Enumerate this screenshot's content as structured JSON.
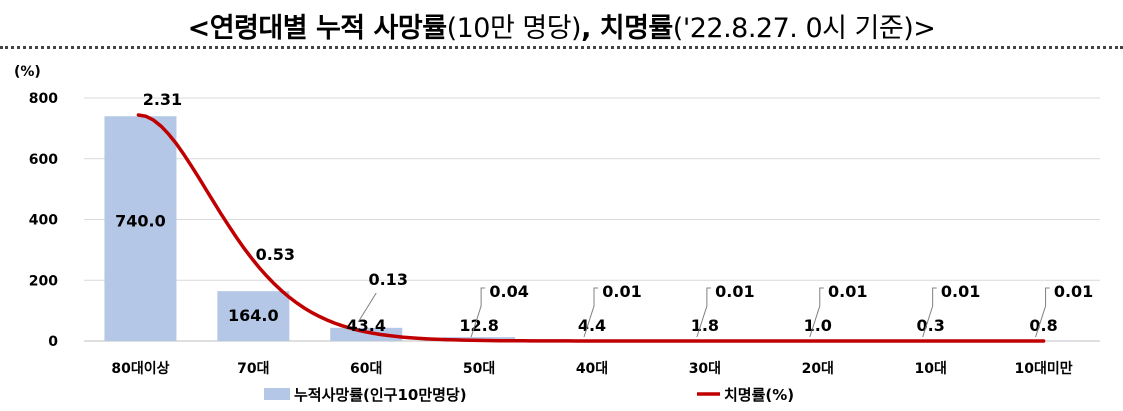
{
  "title": {
    "part1": "<연령대별 누적 사망률",
    "part2": "(10만 명당)",
    "part3": ", 치명률",
    "part4": "('22.8.27. 0시 기준)>"
  },
  "chart_data": {
    "type": "bar",
    "unit_label": "(%)",
    "categories": [
      "80대이상",
      "70대",
      "60대",
      "50대",
      "40대",
      "30대",
      "20대",
      "10대",
      "10대미만"
    ],
    "ylim": [
      0,
      800
    ],
    "yticks": [
      0,
      200,
      400,
      600,
      800
    ],
    "grid": true,
    "legend_position": "bottom",
    "series": [
      {
        "name": "누적사망률(인구10만명당)",
        "type": "bar",
        "color": "#b4c7e7",
        "values": [
          740.0,
          164.0,
          43.4,
          12.8,
          4.4,
          1.8,
          1.0,
          0.3,
          0.8
        ],
        "labels": [
          "740.0",
          "164.0",
          "43.4",
          "12.8",
          "4.4",
          "1.8",
          "1.0",
          "0.3",
          "0.8"
        ]
      },
      {
        "name": "치명률(%)",
        "type": "line",
        "color": "#c00000",
        "values": [
          2.31,
          0.53,
          0.13,
          0.04,
          0.01,
          0.01,
          0.01,
          0.01,
          0.01
        ],
        "labels": [
          "2.31",
          "0.53",
          "0.13",
          "0.04",
          "0.01",
          "0.01",
          "0.01",
          "0.01",
          "0.01"
        ]
      }
    ]
  }
}
